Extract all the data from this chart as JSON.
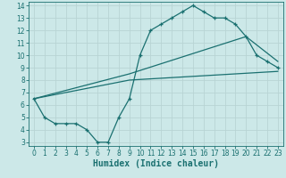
{
  "xlabel": "Humidex (Indice chaleur)",
  "xlim": [
    -0.5,
    23.5
  ],
  "ylim": [
    2.7,
    14.3
  ],
  "xticks": [
    0,
    1,
    2,
    3,
    4,
    5,
    6,
    7,
    8,
    9,
    10,
    11,
    12,
    13,
    14,
    15,
    16,
    17,
    18,
    19,
    20,
    21,
    22,
    23
  ],
  "yticks": [
    3,
    4,
    5,
    6,
    7,
    8,
    9,
    10,
    11,
    12,
    13,
    14
  ],
  "bg_color": "#cce8e8",
  "line_color": "#1a7070",
  "grid_color": "#b8d4d4",
  "line1_x": [
    0,
    1,
    2,
    3,
    4,
    5,
    6,
    7,
    8,
    9,
    10,
    11,
    12,
    13,
    14,
    15,
    16,
    17,
    18,
    19,
    20,
    21,
    22,
    23
  ],
  "line1_y": [
    6.5,
    5.0,
    4.5,
    4.5,
    4.5,
    4.0,
    3.0,
    3.0,
    5.0,
    6.5,
    10.0,
    12.0,
    12.5,
    13.0,
    13.5,
    14.0,
    13.5,
    13.0,
    13.0,
    12.5,
    11.5,
    10.0,
    9.5,
    9.0
  ],
  "line2_x": [
    0,
    9,
    23
  ],
  "line2_y": [
    6.5,
    8.0,
    8.7
  ],
  "line3_x": [
    0,
    9,
    20,
    23
  ],
  "line3_y": [
    6.5,
    8.5,
    11.5,
    9.5
  ],
  "font_size": 7,
  "tick_size": 5.5
}
